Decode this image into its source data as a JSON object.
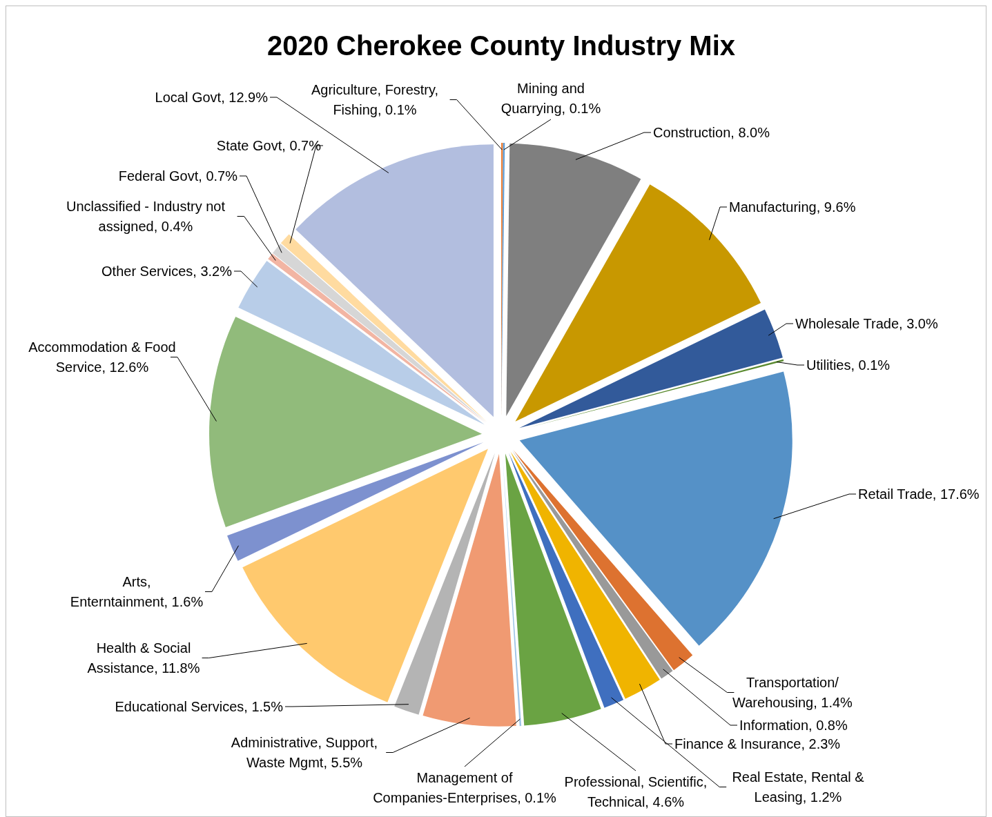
{
  "chart_data": {
    "type": "pie",
    "title": "2020 Cherokee County Industry Mix",
    "categories": [
      "Agriculture, Forestry, Fishing",
      "Mining and Quarrying",
      "Construction",
      "Manufacturing",
      "Wholesale Trade",
      "Utilities",
      "Retail Trade",
      "Transportation/Warehousing",
      "Information",
      "Finance & Insurance",
      "Real Estate, Rental & Leasing",
      "Professional, Scientific, Technical",
      "Management of Companies-Enterprises",
      "Administrative, Support, Waste Mgmt",
      "Educational Services",
      "Health & Social Assistance",
      "Arts, Enterntainment",
      "Accommodation & Food Service",
      "Other Services",
      "Unclassified - Industry not assigned",
      "Federal Govt",
      "State Govt",
      "Local Govt"
    ],
    "values": [
      0.1,
      0.1,
      8.0,
      9.6,
      3.0,
      0.1,
      17.6,
      1.4,
      0.8,
      2.3,
      1.2,
      4.6,
      0.1,
      5.5,
      1.5,
      11.8,
      1.6,
      12.6,
      3.2,
      0.4,
      0.7,
      0.7,
      12.9
    ],
    "value_labels": [
      "0.1%",
      "0.1%",
      "8.0%",
      "9.6%",
      "3.0%",
      "0.1%",
      "17.6%",
      "1.4%",
      "0.8%",
      "2.3%",
      "1.2%",
      "4.6%",
      "0.1%",
      "5.5%",
      "1.5%",
      "11.8%",
      "1.6%",
      "12.6%",
      "3.2%",
      "0.4%",
      "0.7%",
      "0.7%",
      "12.9%"
    ],
    "colors": [
      "#ed7d31",
      "#5b9bd5",
      "#7f7f7f",
      "#c89800",
      "#325a9a",
      "#5a8a2f",
      "#5591c7",
      "#dd7230",
      "#999999",
      "#f0b400",
      "#3f6fbf",
      "#6aa343",
      "#9dc3e6",
      "#f09a72",
      "#b4b4b4",
      "#ffc96e",
      "#7d91cf",
      "#91bb7b",
      "#b8cde8",
      "#f2b5a3",
      "#d6d6d6",
      "#ffdba0",
      "#b2bedf"
    ]
  }
}
